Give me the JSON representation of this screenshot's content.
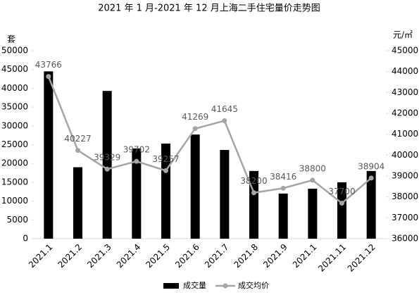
{
  "chart_data": {
    "type": "bar-line",
    "title": "2021 年 1 月-2021 年 12 月上海二手住宅量价走势图",
    "y_label": "套",
    "y2_label": "元/㎡",
    "categories": [
      "2021.1",
      "2021.2",
      "2021.3",
      "2021.4",
      "2021.5",
      "2021.6",
      "2021.7",
      "2021.8",
      "2021.9",
      "2021.1",
      "2021.11",
      "2021.12"
    ],
    "series": [
      {
        "name": "成交量",
        "type": "bar",
        "color": "#000000",
        "values": [
          44500,
          19000,
          39300,
          24000,
          25300,
          27700,
          23600,
          18000,
          12000,
          13300,
          15000,
          18000
        ]
      },
      {
        "name": "成交均价",
        "type": "line",
        "axis": "y2",
        "color": "#a5a5a5",
        "values": [
          43766,
          40227,
          39329,
          39702,
          39257,
          41269,
          41645,
          38200,
          38416,
          38800,
          37700,
          38904
        ]
      }
    ],
    "ylim": [
      0,
      50000
    ],
    "yticks": [
      0,
      5000,
      10000,
      15000,
      20000,
      25000,
      30000,
      35000,
      40000,
      45000,
      50000
    ],
    "y2lim": [
      36000,
      45000
    ],
    "y2ticks": [
      36000,
      37000,
      38000,
      39000,
      40000,
      41000,
      42000,
      43000,
      44000,
      45000
    ],
    "legend": "bottom"
  }
}
